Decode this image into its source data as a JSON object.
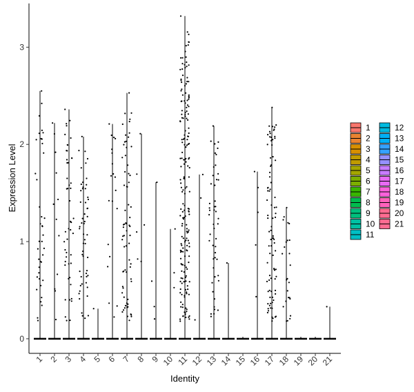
{
  "chart_data": {
    "type": "scatter",
    "subtype": "violin-jitter",
    "title": "",
    "xlabel": "Identity",
    "ylabel": "Expression Level",
    "ylim": [
      -0.15,
      3.45
    ],
    "yticks": [
      0,
      1,
      2,
      3
    ],
    "grid": false,
    "legend_position": "right",
    "categories": [
      "1",
      "2",
      "3",
      "4",
      "5",
      "6",
      "7",
      "8",
      "9",
      "10",
      "11",
      "12",
      "13",
      "14",
      "15",
      "16",
      "17",
      "18",
      "19",
      "20",
      "21"
    ],
    "colors": [
      "#F8766D",
      "#EA8331",
      "#D89000",
      "#C09B00",
      "#A3A500",
      "#7CAE00",
      "#39B600",
      "#00BB4E",
      "#00BF7D",
      "#00C1A3",
      "#00BFC4",
      "#00BAE0",
      "#00B0F6",
      "#35A2FF",
      "#9590FF",
      "#C77CFF",
      "#E76BF3",
      "#FA62DB",
      "#FF62BC",
      "#FF6C91",
      "#FF6C91"
    ],
    "max_values": [
      2.55,
      2.22,
      2.36,
      2.08,
      0.31,
      2.21,
      2.53,
      2.11,
      1.61,
      1.13,
      3.32,
      1.69,
      2.19,
      0.78,
      0.02,
      1.72,
      2.38,
      1.35,
      0.02,
      0.02,
      0.33
    ],
    "point_counts": [
      40,
      12,
      50,
      55,
      1,
      20,
      70,
      6,
      4,
      3,
      190,
      3,
      50,
      1,
      0,
      5,
      90,
      25,
      0,
      0,
      1
    ],
    "zero_points": true
  }
}
